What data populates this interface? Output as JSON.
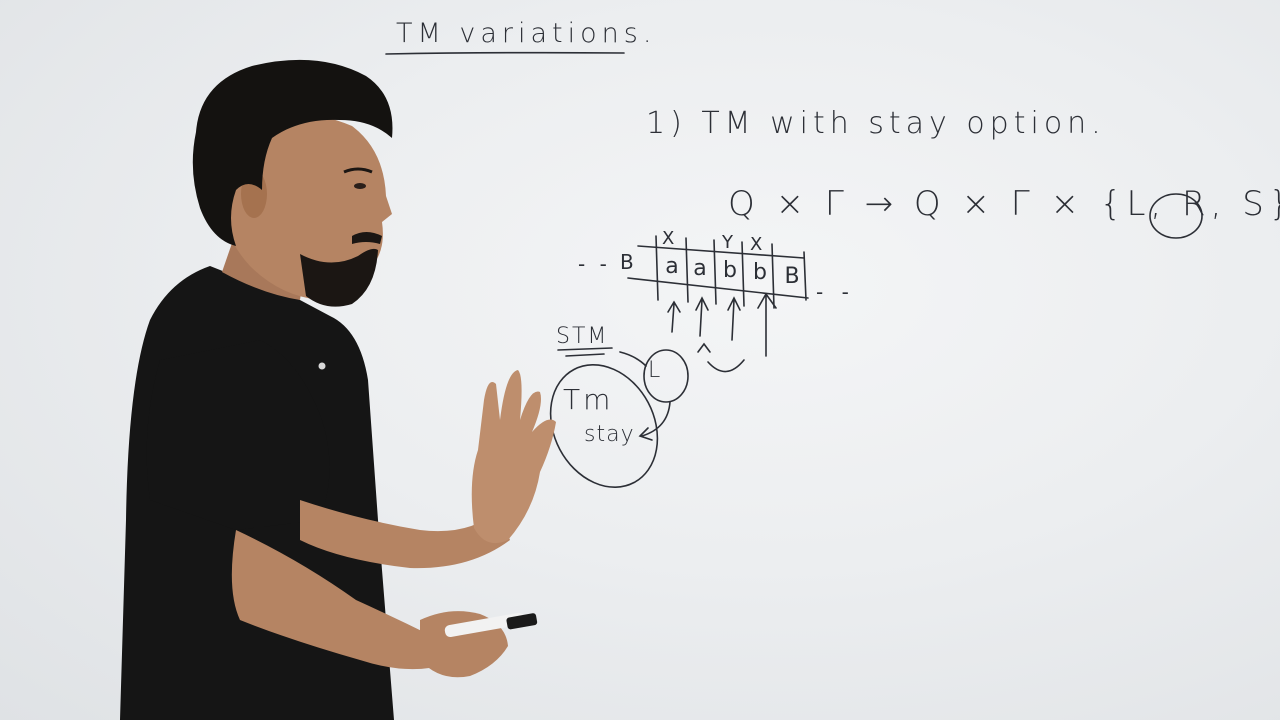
{
  "board": {
    "title": "TM variations.",
    "heading": "1) TM with stay option.",
    "formula": "Q × Γ → Q × Γ × {L, R, S}",
    "tape": {
      "left_dots": "- -",
      "left_blank": "B",
      "cells": [
        "a",
        "a",
        "b",
        "b",
        "B"
      ],
      "right_dots": "- -",
      "marks": [
        "X",
        "Y",
        "X"
      ]
    },
    "stm_label": "STM",
    "l_label": "L",
    "tm_label": "Tm",
    "stay_label": "stay"
  },
  "colors": {
    "ink": "#2c2f36",
    "board": "#eceef0",
    "shirt": "#151515",
    "skin": "#b58463",
    "hair": "#141210"
  }
}
